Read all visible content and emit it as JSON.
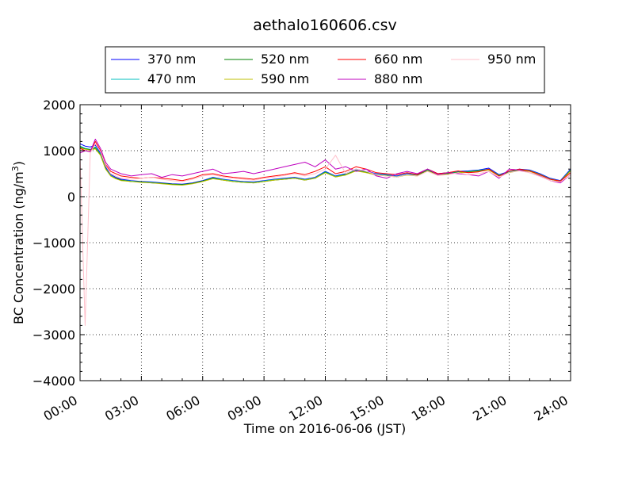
{
  "chart_data": {
    "type": "line",
    "title": "aethalo160606.csv",
    "xlabel": "Time on 2016-06-06 (JST)",
    "ylabel_main": "BC Concentration (ng/m",
    "ylabel_sup": "3",
    "ylabel_close": ")",
    "x_unit": "hour",
    "xlim": [
      0,
      24
    ],
    "ylim": [
      -4000,
      2000
    ],
    "x_ticks": [
      0,
      3,
      6,
      9,
      12,
      15,
      18,
      21,
      24
    ],
    "x_tick_labels": [
      "00:00",
      "03:00",
      "06:00",
      "09:00",
      "12:00",
      "15:00",
      "18:00",
      "21:00",
      "24:00"
    ],
    "y_ticks": [
      -4000,
      -3000,
      -2000,
      -1000,
      0,
      1000,
      2000
    ],
    "y_tick_labels": [
      "−4000",
      "−3000",
      "−2000",
      "−1000",
      "0",
      "1000",
      "2000"
    ],
    "grid": true,
    "legend_position": "top",
    "x": [
      0.0,
      0.25,
      0.5,
      0.75,
      1.0,
      1.25,
      1.5,
      1.75,
      2.0,
      2.5,
      3.0,
      3.5,
      4.0,
      4.5,
      5.0,
      5.5,
      6.0,
      6.5,
      7.0,
      7.5,
      8.0,
      8.5,
      9.0,
      9.5,
      10.0,
      10.5,
      11.0,
      11.5,
      12.0,
      12.5,
      13.0,
      13.5,
      14.0,
      14.5,
      15.0,
      15.5,
      16.0,
      16.5,
      17.0,
      17.5,
      18.0,
      18.5,
      19.0,
      19.5,
      20.0,
      20.5,
      21.0,
      21.5,
      22.0,
      22.5,
      23.0,
      23.5,
      24.0
    ],
    "series": [
      {
        "name": "370 nm",
        "color": "#0000ff",
        "values": [
          1150,
          1100,
          1080,
          1120,
          950,
          650,
          480,
          420,
          380,
          350,
          330,
          320,
          300,
          280,
          270,
          300,
          350,
          420,
          380,
          350,
          330,
          320,
          350,
          380,
          400,
          420,
          380,
          420,
          550,
          450,
          500,
          600,
          550,
          500,
          480,
          450,
          500,
          480,
          600,
          500,
          520,
          550,
          560,
          580,
          620,
          480,
          550,
          600,
          580,
          500,
          400,
          350,
          600
        ]
      },
      {
        "name": "470 nm",
        "color": "#00bfbf",
        "values": [
          1100,
          1050,
          1030,
          1080,
          920,
          620,
          460,
          400,
          360,
          340,
          320,
          310,
          290,
          270,
          260,
          290,
          340,
          410,
          370,
          340,
          320,
          310,
          340,
          370,
          390,
          410,
          370,
          410,
          540,
          440,
          490,
          580,
          540,
          490,
          470,
          440,
          490,
          470,
          580,
          490,
          510,
          540,
          550,
          570,
          600,
          470,
          540,
          590,
          570,
          490,
          390,
          340,
          580
        ]
      },
      {
        "name": "520 nm",
        "color": "#008000",
        "values": [
          1080,
          1040,
          1020,
          1060,
          910,
          610,
          450,
          400,
          360,
          330,
          320,
          300,
          290,
          270,
          260,
          290,
          340,
          400,
          360,
          330,
          310,
          300,
          330,
          360,
          380,
          400,
          360,
          400,
          530,
          430,
          480,
          570,
          530,
          480,
          460,
          430,
          480,
          460,
          570,
          480,
          500,
          530,
          540,
          560,
          590,
          460,
          530,
          580,
          560,
          480,
          380,
          330,
          570
        ]
      },
      {
        "name": "590 nm",
        "color": "#bfbf00",
        "values": [
          1060,
          1030,
          1010,
          1040,
          900,
          600,
          450,
          390,
          350,
          330,
          310,
          300,
          280,
          260,
          250,
          280,
          330,
          390,
          360,
          330,
          310,
          300,
          330,
          360,
          380,
          400,
          360,
          400,
          520,
          430,
          470,
          560,
          520,
          470,
          450,
          430,
          470,
          450,
          560,
          470,
          490,
          520,
          530,
          550,
          580,
          450,
          520,
          570,
          550,
          470,
          380,
          330,
          560
        ]
      },
      {
        "name": "660 nm",
        "color": "#ff0000",
        "values": [
          1050,
          1000,
          980,
          1200,
          1000,
          700,
          550,
          500,
          450,
          420,
          400,
          420,
          400,
          380,
          350,
          400,
          480,
          500,
          450,
          420,
          400,
          380,
          420,
          450,
          480,
          520,
          480,
          550,
          650,
          500,
          550,
          650,
          600,
          520,
          500,
          480,
          520,
          480,
          600,
          500,
          520,
          560,
          520,
          540,
          600,
          450,
          560,
          600,
          560,
          480,
          380,
          340,
          520
        ]
      },
      {
        "name": "880 nm",
        "color": "#bf00bf",
        "values": [
          950,
          1000,
          980,
          1250,
          1050,
          750,
          600,
          550,
          500,
          450,
          480,
          500,
          420,
          480,
          450,
          500,
          550,
          600,
          500,
          520,
          550,
          500,
          550,
          600,
          650,
          700,
          750,
          650,
          800,
          600,
          650,
          550,
          600,
          450,
          400,
          500,
          550,
          500,
          600,
          480,
          520,
          500,
          480,
          450,
          550,
          400,
          600,
          580,
          520,
          450,
          350,
          300,
          480
        ]
      },
      {
        "name": "950 nm",
        "color": "#ffc0cb",
        "values": [
          900,
          -2800,
          950,
          1150,
          980,
          680,
          500,
          450,
          400,
          380,
          400,
          420,
          380,
          350,
          330,
          380,
          450,
          480,
          430,
          400,
          380,
          360,
          400,
          430,
          460,
          500,
          450,
          500,
          600,
          900,
          500,
          600,
          550,
          480,
          450,
          430,
          480,
          450,
          550,
          460,
          480,
          520,
          480,
          500,
          550,
          420,
          530,
          560,
          520,
          440,
          350,
          320,
          480
        ]
      }
    ]
  }
}
